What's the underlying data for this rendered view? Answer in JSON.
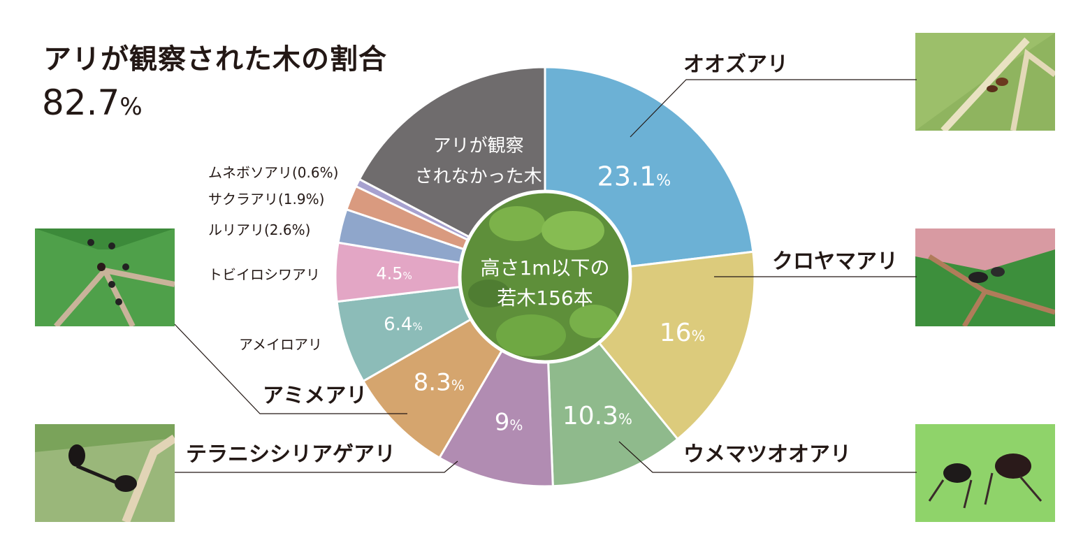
{
  "header": {
    "title": "アリが観察された木の割合",
    "rate_value": "82.7",
    "rate_unit": "%"
  },
  "center": {
    "line1": "高さ1m以下の",
    "line2": "若木156本"
  },
  "colors": {
    "gray": "#6f6c6d",
    "blue": "#6cb1d5",
    "yellow": "#dccb7c",
    "green": "#8fba8c",
    "purple": "#b18cb2",
    "orange": "#d5a56e",
    "teal": "#8cbcb8",
    "pink": "#e3a6c5",
    "steel": "#8fa6cb",
    "salmon": "#d99a7f",
    "lavender": "#a7a1cf"
  },
  "chart_data": {
    "type": "pie",
    "title": "アリが観察された木の割合",
    "series": [
      {
        "name": "オオズアリ",
        "value": 23.1,
        "label": "23.1",
        "color": "#6cb1d5"
      },
      {
        "name": "クロヤマアリ",
        "value": 16,
        "label": "16",
        "color": "#dccb7c"
      },
      {
        "name": "ウメマツオオアリ",
        "value": 10.3,
        "label": "10.3",
        "color": "#8fba8c"
      },
      {
        "name": "テラニシシリアゲアリ",
        "value": 9,
        "label": "9",
        "color": "#b18cb2"
      },
      {
        "name": "アミメアリ",
        "value": 8.3,
        "label": "8.3",
        "color": "#d5a56e"
      },
      {
        "name": "アメイロアリ",
        "value": 6.4,
        "label": "6.4",
        "color": "#8cbcb8"
      },
      {
        "name": "トビイロシワアリ",
        "value": 4.5,
        "label": "4.5",
        "color": "#e3a6c5"
      },
      {
        "name": "ルリアリ(2.6%)",
        "value": 2.6,
        "label": "",
        "color": "#8fa6cb"
      },
      {
        "name": "サクラアリ(1.9%)",
        "value": 1.9,
        "label": "",
        "color": "#d99a7f"
      },
      {
        "name": "ムネボソアリ(0.6%)",
        "value": 0.6,
        "label": "",
        "color": "#a7a1cf"
      },
      {
        "name": "アリが観察されなかった木",
        "value": 17.3,
        "label": "",
        "color": "#6f6c6d"
      }
    ],
    "gray_label_lines": [
      "アリが観察",
      "されなかった木"
    ],
    "pct_suffix": "%"
  },
  "photos": [
    {
      "alt": "オオズアリ写真"
    },
    {
      "alt": "クロヤマアリ写真"
    },
    {
      "alt": "ウメマツオオアリ写真"
    },
    {
      "alt": "アミメアリ写真"
    },
    {
      "alt": "テラニシシリアゲアリ写真"
    }
  ]
}
